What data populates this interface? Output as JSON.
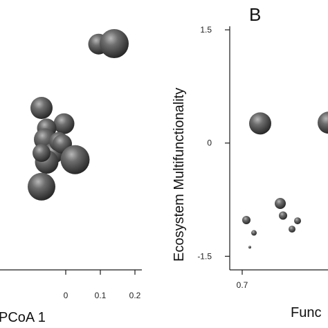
{
  "chart_data": [
    {
      "type": "scatter",
      "title": "",
      "xlabel": "PCoA 1",
      "ylabel": "",
      "xticks": [
        "0",
        "0.1",
        "0.2"
      ],
      "xtick_values": [
        0,
        0.1,
        0.2
      ],
      "xlim": [
        -0.27,
        0.22
      ],
      "ylim": [
        -0.3,
        0.3
      ],
      "marker": "shaded gray sphere, size varies",
      "points": [
        {
          "x": 0.095,
          "y": 0.202,
          "size": 15
        },
        {
          "x": 0.14,
          "y": 0.203,
          "size": 21
        },
        {
          "x": -0.005,
          "y": 0.025,
          "size": 15
        },
        {
          "x": -0.055,
          "y": 0.015,
          "size": 14
        },
        {
          "x": -0.06,
          "y": -0.01,
          "size": 16
        },
        {
          "x": -0.035,
          "y": -0.04,
          "size": 15
        },
        {
          "x": -0.02,
          "y": -0.015,
          "size": 14
        },
        {
          "x": -0.01,
          "y": -0.02,
          "size": 14
        },
        {
          "x": 0.027,
          "y": -0.055,
          "size": 21
        },
        {
          "x": -0.055,
          "y": -0.06,
          "size": 17
        },
        {
          "x": -0.07,
          "y": -0.04,
          "size": 13
        },
        {
          "x": -0.07,
          "y": -0.115,
          "size": 20
        },
        {
          "x": -0.07,
          "y": 0.06,
          "size": 16
        }
      ]
    },
    {
      "type": "scatter",
      "panel_label": "B",
      "title": "",
      "xlabel": "Func",
      "ylabel": "Ecosystem Multifunctionality",
      "xticks": [
        "0.7"
      ],
      "xtick_values": [
        0.7
      ],
      "yticks": [
        "1.5",
        "0",
        "-1.5"
      ],
      "ytick_values": [
        1.5,
        0,
        -1.5
      ],
      "xlim": [
        0.685,
        0.83
      ],
      "ylim": [
        -1.68,
        1.62
      ],
      "marker": "shaded gray sphere, size varies",
      "points": [
        {
          "x": 0.726,
          "y": 0.26,
          "size": 16
        },
        {
          "x": 0.825,
          "y": 0.27,
          "size": 16
        },
        {
          "x": 0.706,
          "y": -1.02,
          "size": 6
        },
        {
          "x": 0.717,
          "y": -1.19,
          "size": 4
        },
        {
          "x": 0.711,
          "y": -1.38,
          "size": 2
        },
        {
          "x": 0.755,
          "y": -0.8,
          "size": 8
        },
        {
          "x": 0.759,
          "y": -0.96,
          "size": 6
        },
        {
          "x": 0.772,
          "y": -1.14,
          "size": 5
        },
        {
          "x": 0.78,
          "y": -1.03,
          "size": 5
        }
      ]
    }
  ]
}
